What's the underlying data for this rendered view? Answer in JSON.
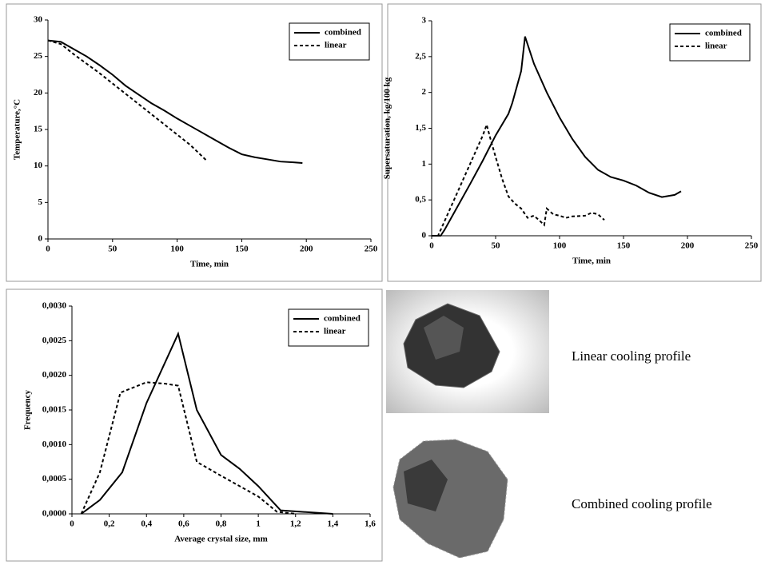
{
  "chart_data": [
    {
      "type": "line",
      "x_label": "Time, min",
      "y_label": "Temperature,°C",
      "xlim": [
        0,
        250
      ],
      "xticks": [
        0,
        50,
        100,
        150,
        200,
        250
      ],
      "ylim": [
        0,
        30
      ],
      "yticks": [
        0,
        5,
        10,
        15,
        20,
        25,
        30
      ],
      "grid": false,
      "legend": "upper right",
      "series": [
        {
          "name": "combined",
          "color": "#000000",
          "style": "solid",
          "x": [
            0,
            10,
            20,
            30,
            40,
            50,
            60,
            70,
            80,
            90,
            100,
            110,
            120,
            130,
            140,
            150,
            160,
            170,
            180,
            190,
            197
          ],
          "values": [
            27.2,
            27,
            26,
            25,
            23.8,
            22.5,
            21,
            19.8,
            18.6,
            17.6,
            16.5,
            15.5,
            14.5,
            13.5,
            12.5,
            11.6,
            11.2,
            10.9,
            10.6,
            10.5,
            10.4
          ]
        },
        {
          "name": "linear",
          "color": "#000000",
          "style": "dotted",
          "x": [
            0,
            10,
            20,
            30,
            40,
            50,
            60,
            70,
            80,
            90,
            100,
            110,
            123
          ],
          "values": [
            27.2,
            26.7,
            25.3,
            24,
            22.7,
            21.3,
            19.9,
            18.5,
            17.1,
            15.7,
            14.3,
            12.9,
            10.7
          ]
        }
      ]
    },
    {
      "type": "line",
      "x_label": "Time, min",
      "y_label": "Supersaturation, kg/100 kg",
      "xlim": [
        0,
        250
      ],
      "xticks": [
        0,
        50,
        100,
        150,
        200,
        250
      ],
      "ylim": [
        0,
        3
      ],
      "yticks": [
        0,
        {
          "value": 0.5,
          "label": "0,5"
        },
        1,
        {
          "value": 1.5,
          "label": "1,5"
        },
        2,
        {
          "value": 2.5,
          "label": "2,5"
        },
        3
      ],
      "grid": false,
      "legend": "upper right",
      "series": [
        {
          "name": "combined",
          "color": "#000000",
          "style": "solid",
          "x": [
            0,
            7,
            10,
            20,
            30,
            40,
            50,
            60,
            63,
            70,
            73,
            80,
            90,
            100,
            110,
            120,
            130,
            140,
            150,
            160,
            170,
            180,
            190,
            195
          ],
          "values": [
            0,
            0,
            0.08,
            0.4,
            0.72,
            1.05,
            1.4,
            1.7,
            1.85,
            2.3,
            2.78,
            2.4,
            2.0,
            1.65,
            1.35,
            1.1,
            0.92,
            0.82,
            0.77,
            0.7,
            0.6,
            0.54,
            0.57,
            0.62
          ]
        },
        {
          "name": "linear",
          "color": "#000000",
          "style": "dotted",
          "x": [
            0,
            5,
            10,
            20,
            30,
            40,
            43,
            46,
            50,
            55,
            60,
            65,
            70,
            75,
            80,
            85,
            88,
            90,
            95,
            100,
            105,
            110,
            120,
            125,
            130,
            135
          ],
          "values": [
            0,
            0,
            0.2,
            0.6,
            1.0,
            1.4,
            1.55,
            1.35,
            1.1,
            0.8,
            0.55,
            0.45,
            0.38,
            0.25,
            0.28,
            0.2,
            0.15,
            0.38,
            0.3,
            0.28,
            0.25,
            0.27,
            0.28,
            0.32,
            0.3,
            0.22
          ]
        }
      ]
    },
    {
      "type": "line",
      "x_label": "Average crystal size, mm",
      "y_label": "Frequency",
      "xlim": [
        0,
        1.6
      ],
      "xticks": [
        0,
        {
          "value": 0.2,
          "label": "0,2"
        },
        {
          "value": 0.4,
          "label": "0,4"
        },
        {
          "value": 0.6,
          "label": "0,6"
        },
        {
          "value": 0.8,
          "label": "0,8"
        },
        1,
        {
          "value": 1.2,
          "label": "1,2"
        },
        {
          "value": 1.4,
          "label": "1,4"
        },
        {
          "value": 1.6,
          "label": "1,6"
        }
      ],
      "ylim": [
        0,
        0.003
      ],
      "yticks": [
        {
          "value": 0,
          "label": "0,0000"
        },
        {
          "value": 0.0005,
          "label": "0,0005"
        },
        {
          "value": 0.001,
          "label": "0,0010"
        },
        {
          "value": 0.0015,
          "label": "0,0015"
        },
        {
          "value": 0.002,
          "label": "0,0020"
        },
        {
          "value": 0.0025,
          "label": "0,0025"
        },
        {
          "value": 0.003,
          "label": "0,0030"
        }
      ],
      "grid": false,
      "legend": "upper right",
      "series": [
        {
          "name": "combined",
          "color": "#000000",
          "style": "solid",
          "x": [
            0.05,
            0.1,
            0.15,
            0.27,
            0.4,
            0.57,
            0.67,
            0.8,
            0.9,
            1.0,
            1.12,
            1.4
          ],
          "values": [
            0,
            0.0001,
            0.0002,
            0.0006,
            0.0016,
            0.0026,
            0.0015,
            0.00085,
            0.00065,
            0.0004,
            5e-05,
            0
          ]
        },
        {
          "name": "linear",
          "color": "#000000",
          "style": "dotted",
          "x": [
            0.05,
            0.1,
            0.15,
            0.26,
            0.4,
            0.5,
            0.57,
            0.67,
            0.8,
            1.0,
            1.1,
            1.2
          ],
          "values": [
            0,
            0.0003,
            0.0006,
            0.00175,
            0.0019,
            0.00188,
            0.00185,
            0.00075,
            0.00055,
            0.00025,
            3e-05,
            0
          ]
        }
      ]
    }
  ],
  "images": [
    {
      "caption": "Linear cooling profile"
    },
    {
      "caption": "Combined cooling profile"
    }
  ]
}
